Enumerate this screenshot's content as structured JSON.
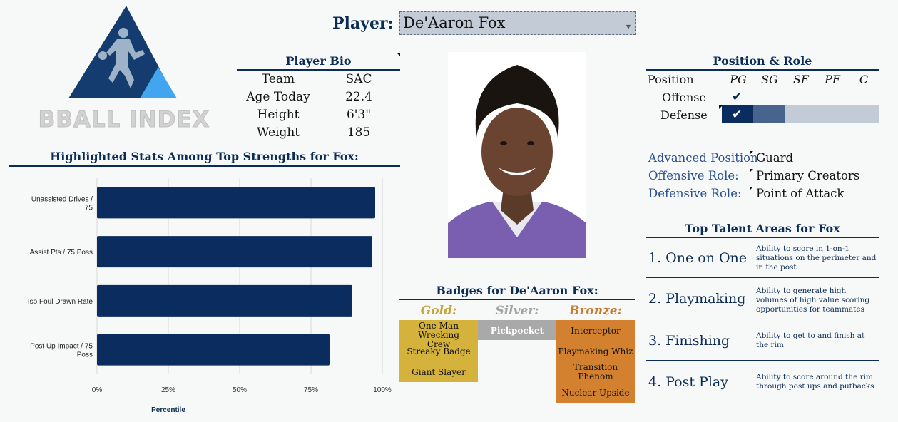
{
  "logo": {
    "text": "BBALL INDEX",
    "colors": {
      "dark": "#143c6e",
      "light": "#41a6ef"
    }
  },
  "player": {
    "label": "Player:",
    "selected": "De'Aaron Fox"
  },
  "bio": {
    "title": "Player Bio",
    "rows": [
      {
        "label": "Team",
        "value": "SAC"
      },
      {
        "label": "Age Today",
        "value": "22.4"
      },
      {
        "label": "Height",
        "value": "6'3\""
      },
      {
        "label": "Weight",
        "value": "185"
      }
    ]
  },
  "stats_title": "Highlighted Stats Among Top Strengths for Fox:",
  "chart_data": {
    "type": "bar",
    "orientation": "horizontal",
    "categories": [
      "Unassisted Drives / 75",
      "Assist Pts / 75 Poss",
      "Iso Foul Drawn Rate",
      "Post Up Impact / 75 Poss"
    ],
    "values": [
      97.5,
      96.5,
      89.5,
      81.5
    ],
    "xlabel": "Percentile",
    "xlim": [
      0,
      100
    ],
    "ticks": [
      "0%",
      "25%",
      "50%",
      "75%",
      "100%"
    ],
    "tick_values": [
      0,
      25,
      50,
      75,
      100
    ],
    "bar_color": "#0b2c5e",
    "grid": true
  },
  "badges": {
    "title": "Badges for De'Aaron Fox:",
    "gold": {
      "label": "Gold:",
      "color": "#d4b23c",
      "items": [
        "One-Man Wrecking Crew",
        "Streaky Badge",
        "Giant Slayer"
      ]
    },
    "silver": {
      "label": "Silver:",
      "color": "#a9a9a9",
      "items": [
        "Pickpocket"
      ]
    },
    "bronze": {
      "label": "Bronze:",
      "color": "#d4812f",
      "items": [
        "Interceptor",
        "Playmaking Whiz",
        "Transition Phenom",
        "Nuclear Upside"
      ]
    }
  },
  "position": {
    "title": "Position & Role",
    "header_label": "Position",
    "positions": [
      "PG",
      "SG",
      "SF",
      "PF",
      "C"
    ],
    "offense_label": "Offense",
    "defense_label": "Defense",
    "check": "✔",
    "offense_level": 1,
    "defense_level": 2
  },
  "roles": [
    {
      "label": "Advanced Position",
      "value": "Guard"
    },
    {
      "label": "Offensive Role:",
      "value": "Primary Creators"
    },
    {
      "label": "Defensive Role:",
      "value": "Point of Attack"
    }
  ],
  "talents": {
    "title": "Top Talent Areas for Fox",
    "items": [
      {
        "name": "1. One on One",
        "desc": "Ability to score in 1-on-1 situations on the perimeter and in the post"
      },
      {
        "name": "2. Playmaking",
        "desc": "Ability to generate high volumes of high value scoring opportunities for teammates"
      },
      {
        "name": "3. Finishing",
        "desc": "Ability to get to and finish at the rim"
      },
      {
        "name": "4. Post Play",
        "desc": "Ability to score around the rim through post ups and putbacks"
      }
    ]
  }
}
